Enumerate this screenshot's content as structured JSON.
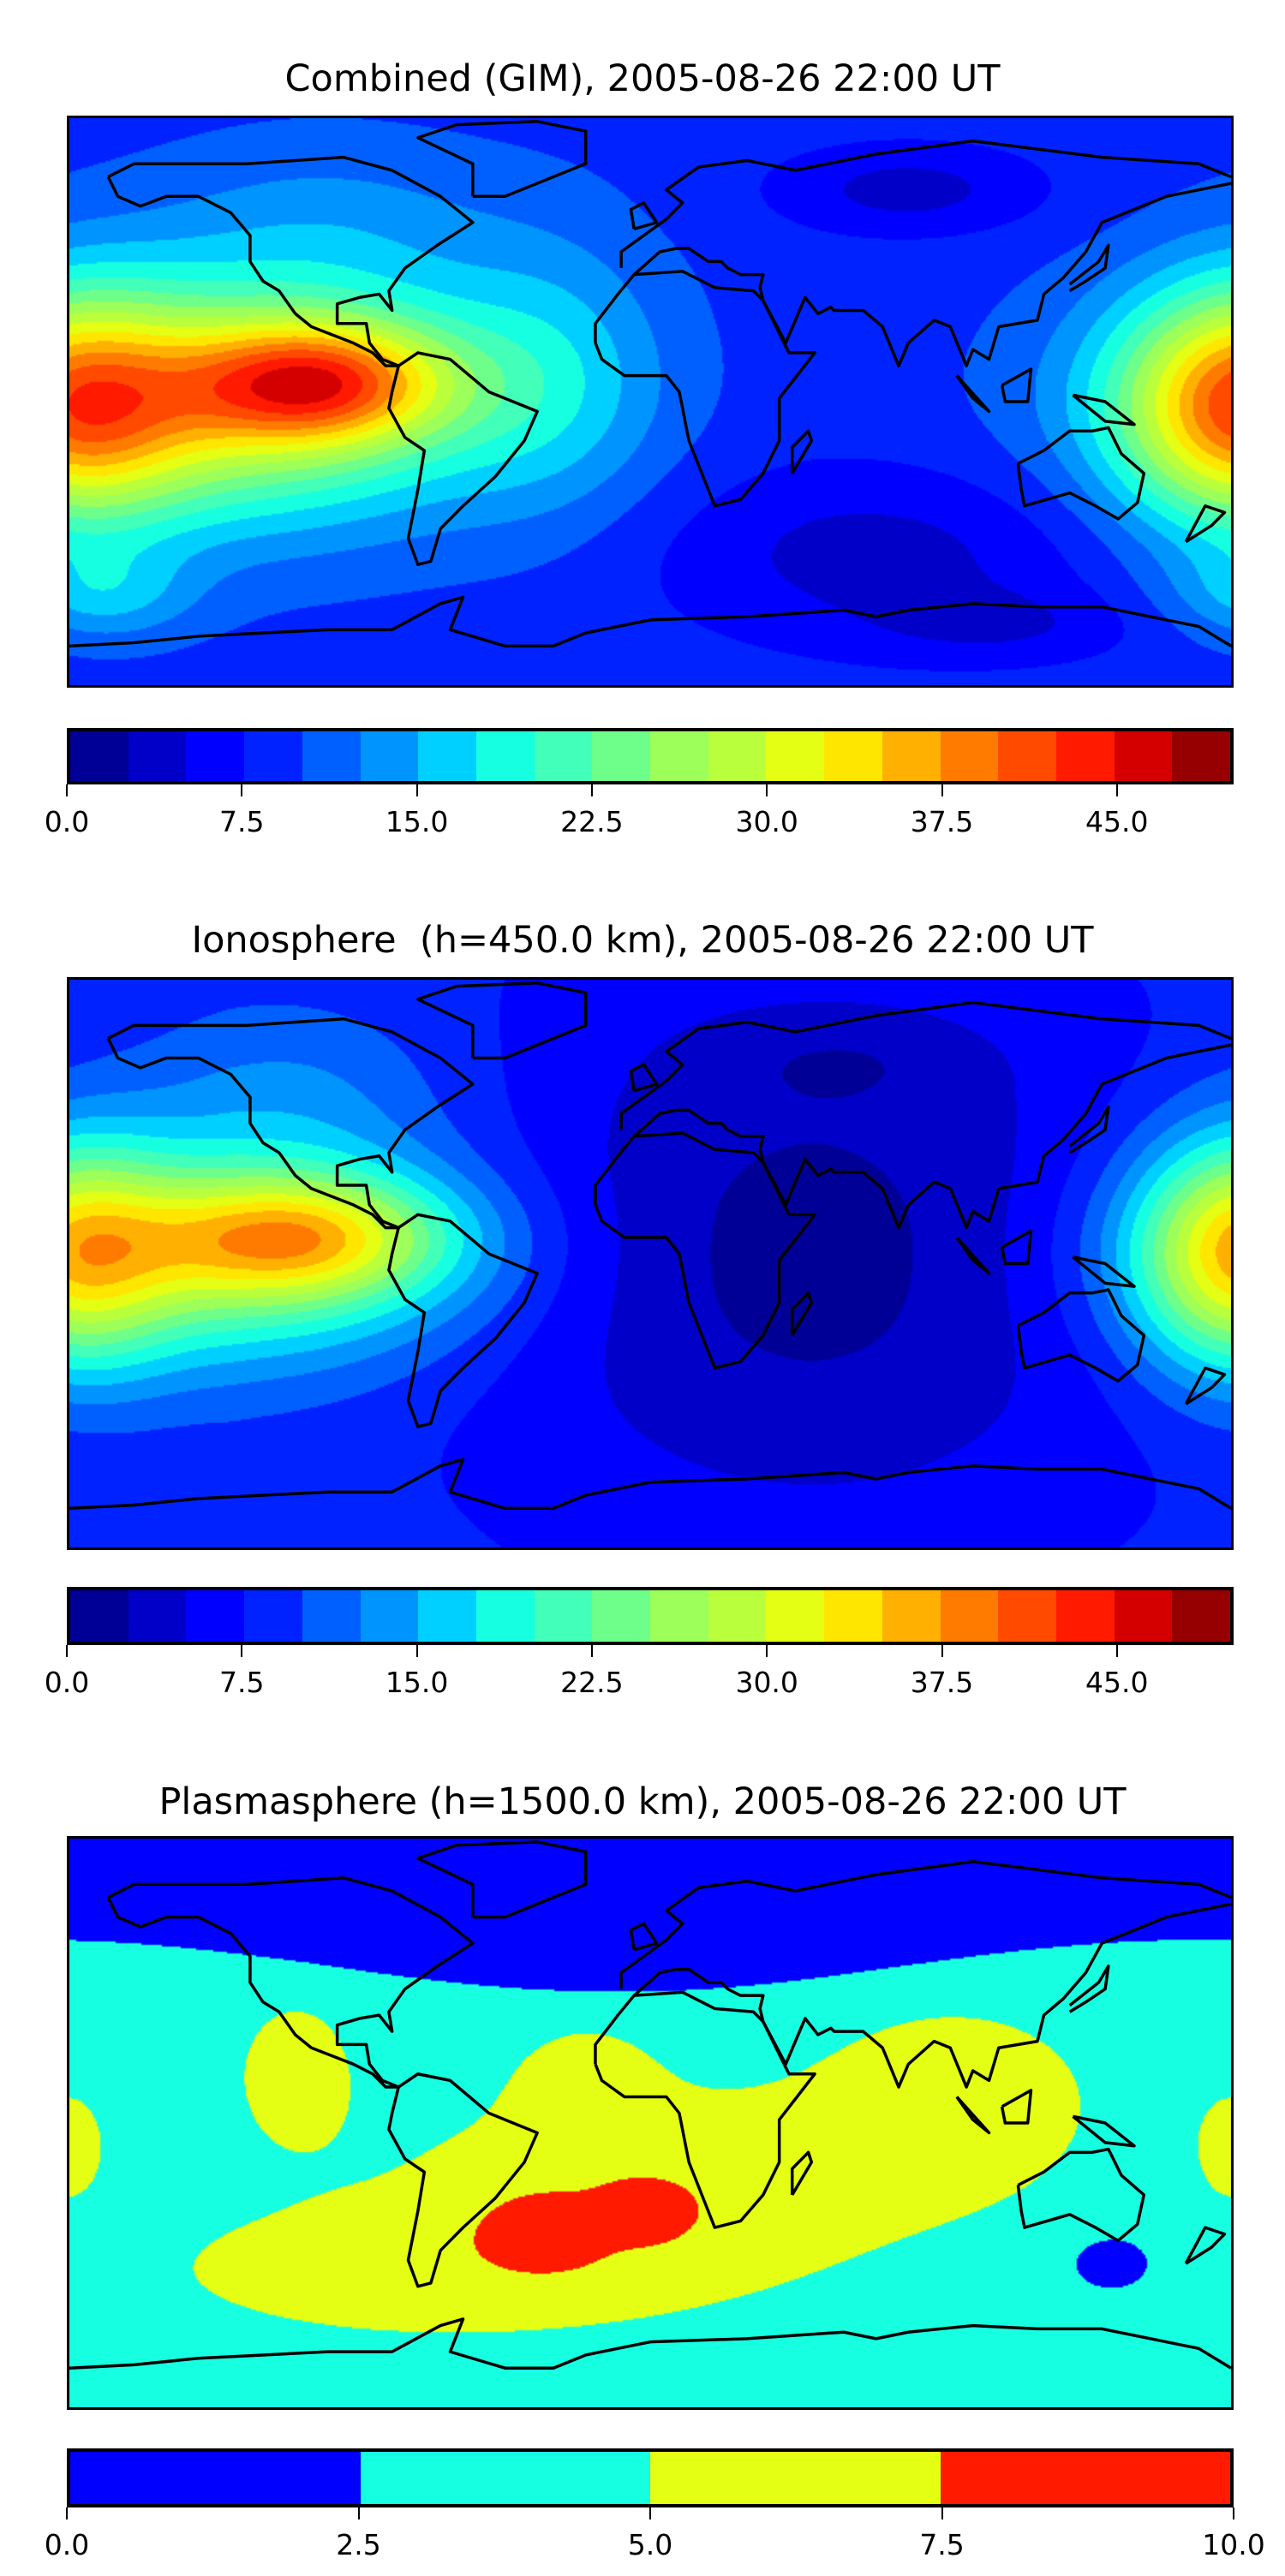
{
  "chart_data": [
    {
      "type": "heatmap",
      "title": "Combined (GIM), 2005-08-26 22:00 UT",
      "colorbar": {
        "min": 0.0,
        "max": 50.0,
        "step": 2.5,
        "ticks": [
          "0.0",
          "7.5",
          "15.0",
          "22.5",
          "30.0",
          "37.5",
          "45.0"
        ],
        "tick_values": [
          0,
          7.5,
          15,
          22.5,
          30,
          37.5,
          45
        ],
        "colors": [
          "#000096",
          "#0000c8",
          "#0000ff",
          "#0022ff",
          "#0060ff",
          "#0094ff",
          "#00d0ff",
          "#16ffe1",
          "#42ffba",
          "#6dff8a",
          "#9dff5a",
          "#baff3c",
          "#e4ff13",
          "#ffe600",
          "#ffb000",
          "#ff7b00",
          "#ff4a00",
          "#ff1a00",
          "#d40000",
          "#960000"
        ]
      },
      "max_region": "eastern equatorial Pacific, peak level 45.0-47.5"
    },
    {
      "type": "heatmap",
      "title": "Ionosphere  (h=450.0 km), 2005-08-26 22:00 UT",
      "colorbar": {
        "min": 0.0,
        "max": 50.0,
        "step": 2.5,
        "ticks": [
          "0.0",
          "7.5",
          "15.0",
          "22.5",
          "30.0",
          "37.5",
          "45.0"
        ],
        "tick_values": [
          0,
          7.5,
          15,
          22.5,
          30,
          37.5,
          45
        ],
        "colors": [
          "#000096",
          "#0000c8",
          "#0000ff",
          "#0022ff",
          "#0060ff",
          "#0094ff",
          "#00d0ff",
          "#16ffe1",
          "#42ffba",
          "#6dff8a",
          "#9dff5a",
          "#baff3c",
          "#e4ff13",
          "#ffe600",
          "#ffb000",
          "#ff7b00",
          "#ff4a00",
          "#ff1a00",
          "#d40000",
          "#960000"
        ]
      },
      "max_region": "eastern equatorial Pacific, peak level 37.5-40.0"
    },
    {
      "type": "heatmap",
      "title": "Plasmasphere (h=1500.0 km), 2005-08-26 22:00 UT",
      "colorbar": {
        "min": 0.0,
        "max": 10.0,
        "step": 2.5,
        "ticks": [
          "0.0",
          "2.5",
          "5.0",
          "7.5",
          "10.0"
        ],
        "tick_values": [
          0,
          2.5,
          5,
          7.5,
          10
        ],
        "colors": [
          "#0000ff",
          "#16ffe1",
          "#e4ff13",
          "#ff1a00"
        ]
      },
      "max_region": "South Atlantic, level 7.5-10.0"
    }
  ]
}
